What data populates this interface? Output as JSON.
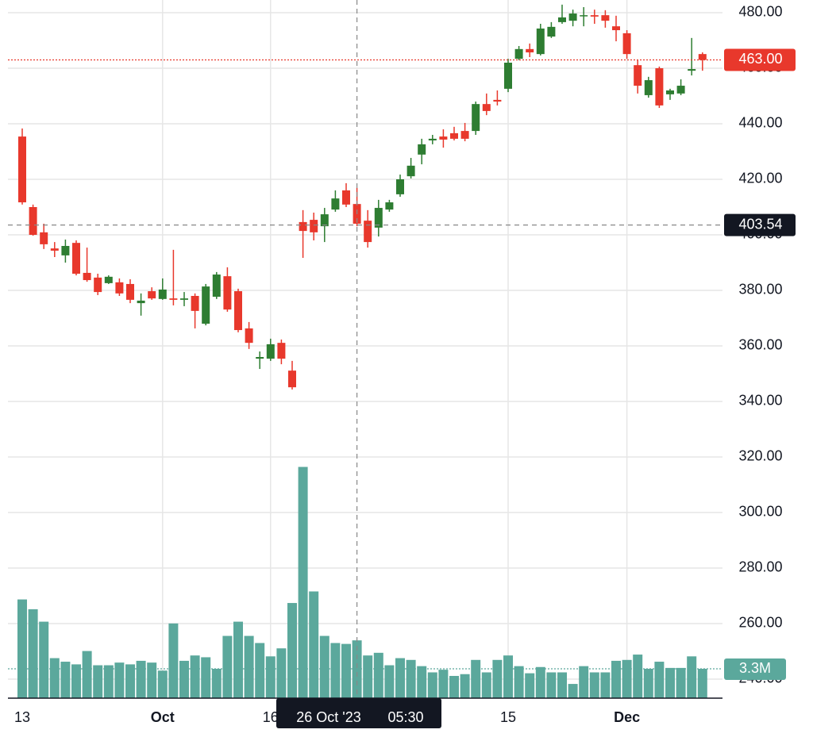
{
  "chart_data": {
    "type": "candlestick",
    "categories": [
      "13",
      null,
      null,
      null,
      null,
      null,
      null,
      null,
      null,
      null,
      null,
      null,
      null,
      "Oct",
      null,
      null,
      null,
      null,
      null,
      null,
      null,
      null,
      null,
      "16",
      null,
      null,
      null,
      null,
      null,
      null,
      null,
      null,
      null,
      null,
      null,
      null,
      null,
      null,
      null,
      null,
      null,
      null,
      null,
      null,
      null,
      "15",
      null,
      null,
      null,
      null,
      null,
      null,
      null,
      null,
      null,
      null,
      "Dec",
      null,
      null,
      null,
      null,
      null,
      null,
      null
    ],
    "open": [
      435.4,
      410.0,
      400.9,
      395.1,
      392.6,
      397.1,
      386.3,
      384.6,
      382.6,
      382.9,
      382.3,
      375.4,
      379.7,
      376.9,
      377.1,
      376.6,
      378.0,
      368.0,
      377.7,
      385.1,
      379.7,
      366.3,
      355.4,
      355.4,
      361.1,
      351.1,
      404.6,
      405.4,
      403.1,
      409.1,
      416.0,
      411.1,
      405.1,
      402.6,
      409.1,
      414.6,
      421.1,
      428.9,
      434.0,
      435.4,
      436.6,
      437.4,
      437.4,
      447.1,
      448.6,
      452.6,
      463.4,
      466.9,
      465.1,
      471.4,
      476.6,
      477.1,
      478.9,
      479.1,
      479.1,
      475.1,
      472.6,
      461.1,
      450.3,
      460.0,
      450.6,
      450.9,
      459.1,
      465.1
    ],
    "high": [
      438.3,
      410.9,
      404.0,
      397.4,
      398.3,
      398.0,
      395.4,
      386.0,
      385.4,
      384.3,
      384.0,
      378.9,
      381.1,
      384.3,
      394.6,
      379.4,
      378.9,
      382.3,
      386.6,
      388.3,
      380.6,
      368.6,
      358.0,
      362.6,
      362.3,
      354.6,
      408.9,
      408.0,
      409.7,
      416.0,
      418.6,
      416.9,
      408.9,
      412.6,
      412.6,
      421.7,
      427.7,
      434.6,
      436.0,
      438.0,
      438.9,
      440.3,
      448.0,
      450.9,
      452.0,
      463.4,
      468.0,
      468.9,
      476.0,
      476.6,
      482.9,
      481.1,
      482.0,
      481.1,
      480.9,
      478.9,
      473.7,
      462.9,
      456.9,
      460.6,
      452.6,
      456.0,
      470.9,
      465.7
    ],
    "low": [
      410.9,
      399.7,
      394.9,
      392.0,
      390.0,
      385.4,
      383.1,
      378.3,
      382.3,
      378.0,
      375.4,
      370.9,
      376.6,
      376.6,
      374.6,
      374.3,
      366.3,
      367.4,
      376.9,
      372.3,
      364.9,
      358.9,
      351.7,
      354.6,
      353.4,
      344.3,
      391.7,
      398.0,
      397.4,
      408.3,
      410.0,
      403.1,
      395.4,
      399.4,
      408.3,
      413.7,
      420.3,
      425.4,
      432.6,
      431.4,
      434.0,
      433.7,
      436.0,
      443.1,
      446.6,
      451.4,
      462.9,
      464.0,
      464.6,
      470.9,
      476.0,
      475.1,
      475.1,
      476.0,
      474.6,
      469.7,
      463.4,
      450.9,
      449.4,
      445.7,
      448.6,
      450.3,
      457.4,
      459.1
    ],
    "close": [
      411.7,
      400.0,
      396.6,
      394.3,
      396.0,
      386.0,
      383.7,
      379.4,
      384.9,
      378.9,
      376.6,
      376.3,
      377.1,
      380.3,
      376.6,
      377.1,
      372.6,
      381.4,
      385.7,
      373.1,
      365.7,
      361.1,
      356.0,
      360.6,
      355.4,
      345.1,
      401.4,
      400.9,
      407.4,
      413.1,
      410.9,
      404.0,
      397.4,
      409.7,
      411.7,
      420.0,
      424.9,
      432.6,
      434.6,
      434.3,
      434.6,
      434.6,
      447.1,
      444.6,
      448.0,
      462.0,
      466.9,
      465.7,
      474.3,
      474.9,
      478.3,
      479.7,
      479.1,
      478.6,
      477.1,
      473.7,
      465.1,
      453.7,
      455.7,
      446.6,
      452.0,
      453.7,
      459.7,
      463.0
    ],
    "up_color": "#2e7d32",
    "down_color": "#e8382c",
    "ylim": [
      233.14,
      484.57
    ],
    "yticks": [
      {
        "value": 240,
        "label": "240.00"
      },
      {
        "value": 260,
        "label": "260.00"
      },
      {
        "value": 280,
        "label": "280.00"
      },
      {
        "value": 300,
        "label": "300.00"
      },
      {
        "value": 320,
        "label": "320.00"
      },
      {
        "value": 340,
        "label": "340.00"
      },
      {
        "value": 360,
        "label": "360.00"
      },
      {
        "value": 380,
        "label": "380.00"
      },
      {
        "value": 400,
        "label": "400.00"
      },
      {
        "value": 420,
        "label": "420.00"
      },
      {
        "value": 440,
        "label": "440.00"
      },
      {
        "value": 460,
        "label": "460.00"
      },
      {
        "value": 480,
        "label": "480.00"
      }
    ],
    "grid": true,
    "volume": {
      "color": "#5ba89c",
      "values": [
        11.1,
        10.0,
        8.6,
        4.5,
        4.1,
        3.8,
        5.3,
        3.7,
        3.7,
        4.0,
        3.8,
        4.2,
        4.0,
        3.1,
        8.4,
        4.2,
        4.8,
        4.6,
        3.3,
        7.0,
        8.6,
        7.0,
        6.2,
        4.7,
        5.6,
        10.7,
        26.0,
        12.0,
        7.0,
        6.2,
        6.1,
        6.5,
        4.8,
        5.1,
        3.7,
        4.5,
        4.3,
        3.6,
        2.9,
        3.2,
        2.5,
        2.7,
        4.3,
        2.9,
        4.3,
        4.8,
        3.6,
        2.8,
        3.5,
        2.9,
        2.9,
        1.6,
        3.6,
        2.9,
        2.9,
        4.2,
        4.3,
        4.9,
        3.3,
        4.1,
        3.4,
        3.4,
        4.7,
        3.3
      ]
    },
    "y2lim": [
      0,
      78.5
    ],
    "last_price": {
      "value": 463.0,
      "label": "463.00"
    },
    "last_volume": {
      "value": 3.3,
      "label": "3.3M"
    },
    "crosshair": {
      "price": {
        "value": 403.54,
        "label": "403.54"
      },
      "date": "26 Oct '23",
      "time": "05:30"
    }
  }
}
